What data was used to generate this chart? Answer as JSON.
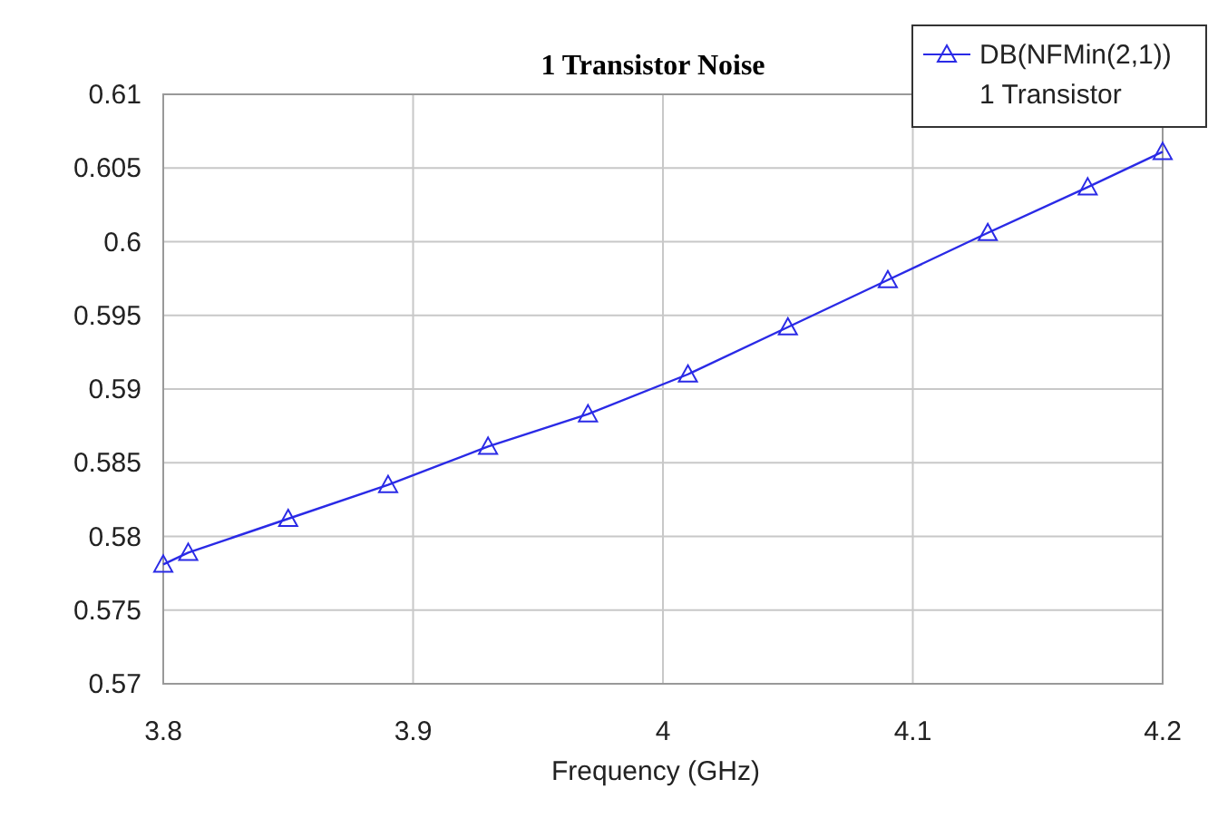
{
  "chart_data": {
    "type": "line",
    "title": "1 Transistor Noise",
    "xlabel": "Frequency (GHz)",
    "x": [
      3.8,
      3.81,
      3.85,
      3.89,
      3.93,
      3.97,
      4.01,
      4.05,
      4.09,
      4.13,
      4.17,
      4.2
    ],
    "series": [
      {
        "name": "DB(NFMin(2,1))",
        "color": "#2a2ae6",
        "values": [
          0.5781,
          0.5789,
          0.5812,
          0.5835,
          0.5861,
          0.5883,
          0.591,
          0.5942,
          0.5974,
          0.6006,
          0.6037,
          0.6061
        ]
      }
    ],
    "annotations": [
      "1 Transistor"
    ],
    "xlim": [
      3.8,
      4.2
    ],
    "xticks": [
      3.8,
      3.9,
      4,
      4.1,
      4.2
    ],
    "ylim": [
      0.57,
      0.61
    ],
    "yticks": [
      0.57,
      0.575,
      0.58,
      0.585,
      0.59,
      0.595,
      0.6,
      0.605,
      0.61
    ],
    "grid": true,
    "legend": "top right",
    "marker": "triangle",
    "line_style": "solid"
  }
}
